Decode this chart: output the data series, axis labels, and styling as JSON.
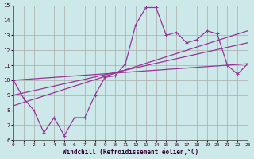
{
  "xlabel": "Windchill (Refroidissement éolien,°C)",
  "background_color": "#cce8e8",
  "grid_color": "#aaaaaa",
  "line_color": "#993399",
  "xlim": [
    0,
    23
  ],
  "ylim": [
    6,
    15
  ],
  "xticks": [
    0,
    1,
    2,
    3,
    4,
    5,
    6,
    7,
    8,
    9,
    10,
    11,
    12,
    13,
    14,
    15,
    16,
    17,
    18,
    19,
    20,
    21,
    22,
    23
  ],
  "yticks": [
    6,
    7,
    8,
    9,
    10,
    11,
    12,
    13,
    14,
    15
  ],
  "series": [
    [
      0,
      10
    ],
    [
      1,
      8.8
    ],
    [
      2,
      8.0
    ],
    [
      3,
      6.5
    ],
    [
      4,
      7.5
    ],
    [
      5,
      6.3
    ],
    [
      6,
      7.5
    ],
    [
      7,
      7.5
    ],
    [
      8,
      9.0
    ],
    [
      9,
      10.2
    ],
    [
      10,
      10.3
    ],
    [
      11,
      11.1
    ],
    [
      12,
      13.7
    ],
    [
      13,
      14.85
    ],
    [
      14,
      14.85
    ],
    [
      15,
      13.0
    ],
    [
      16,
      13.2
    ],
    [
      17,
      12.5
    ],
    [
      18,
      12.7
    ],
    [
      19,
      13.3
    ],
    [
      20,
      13.1
    ],
    [
      21,
      11.0
    ],
    [
      22,
      10.4
    ],
    [
      23,
      11.1
    ]
  ],
  "line2": [
    [
      0,
      10.0
    ],
    [
      23,
      11.1
    ]
  ],
  "line3": [
    [
      0,
      9.0
    ],
    [
      23,
      12.5
    ]
  ],
  "line4": [
    [
      0,
      8.3
    ],
    [
      23,
      13.3
    ]
  ]
}
